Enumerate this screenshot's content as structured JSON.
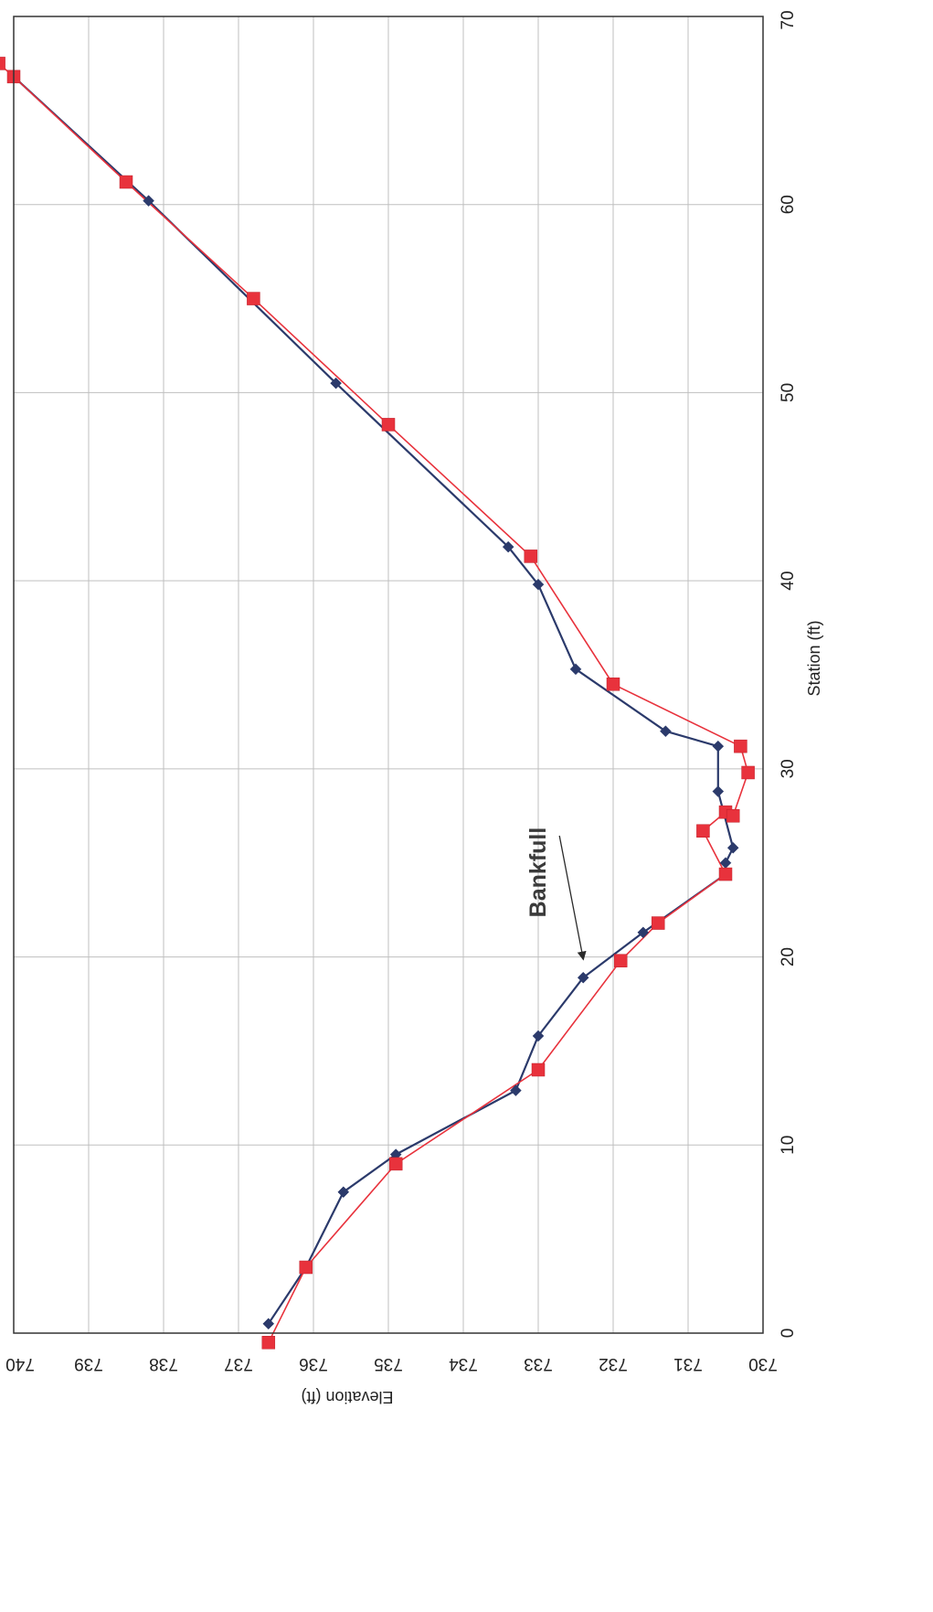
{
  "chart_data": {
    "type": "line",
    "xlabel": "Station (ft)",
    "ylabel": "Elevation (ft)",
    "xlim": [
      0,
      70
    ],
    "ylim": [
      730,
      740
    ],
    "x_ticks": [
      "0",
      "10",
      "20",
      "30",
      "40",
      "50",
      "60",
      "70"
    ],
    "y_ticks": [
      "730",
      "731",
      "732",
      "733",
      "734",
      "735",
      "736",
      "737",
      "738",
      "739",
      "740"
    ],
    "grid": true,
    "series": [
      {
        "marker": "diamond",
        "color": "#2b3a6b",
        "points": [
          [
            0.5,
            736.6
          ],
          [
            3.5,
            736.1
          ],
          [
            7.5,
            735.6
          ],
          [
            9.5,
            734.9
          ],
          [
            12.9,
            733.3
          ],
          [
            15.8,
            733.0
          ],
          [
            18.9,
            732.4
          ],
          [
            21.3,
            731.6
          ],
          [
            24.4,
            730.5
          ],
          [
            25.0,
            730.5
          ],
          [
            25.8,
            730.4
          ],
          [
            28.8,
            730.6
          ],
          [
            31.2,
            730.6
          ],
          [
            32.0,
            731.3
          ],
          [
            35.3,
            732.5
          ],
          [
            39.8,
            733.0
          ],
          [
            41.8,
            733.4
          ],
          [
            50.5,
            735.7
          ],
          [
            60.2,
            738.2
          ],
          [
            66.8,
            740.0
          ]
        ]
      },
      {
        "marker": "square",
        "color": "#e8323c",
        "points": [
          [
            -0.5,
            736.6
          ],
          [
            3.5,
            736.1
          ],
          [
            9.0,
            734.9
          ],
          [
            14.0,
            733.0
          ],
          [
            19.8,
            731.9
          ],
          [
            21.8,
            731.4
          ],
          [
            24.4,
            730.5
          ],
          [
            26.7,
            730.8
          ],
          [
            27.7,
            730.5
          ],
          [
            27.5,
            730.4
          ],
          [
            29.8,
            730.2
          ],
          [
            31.2,
            730.3
          ],
          [
            34.5,
            732.0
          ],
          [
            41.3,
            733.1
          ],
          [
            48.3,
            735.0
          ],
          [
            55.0,
            736.8
          ],
          [
            61.2,
            738.5
          ],
          [
            66.8,
            740.0
          ],
          [
            67.5,
            740.2
          ]
        ]
      }
    ],
    "annotations": [
      {
        "text": "Bankfull",
        "x": 24.5,
        "y": 732.9,
        "arrow_to": [
          19.9,
          732.4
        ]
      }
    ]
  }
}
